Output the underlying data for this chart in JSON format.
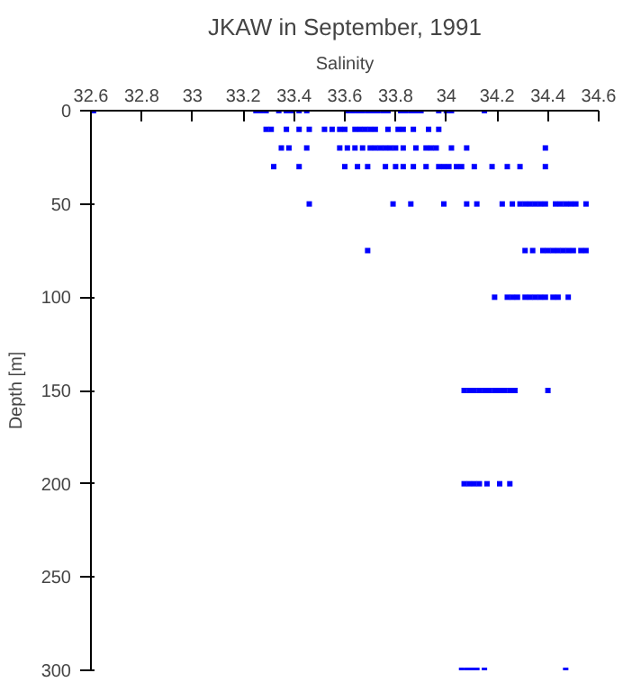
{
  "chart_data": {
    "type": "scatter",
    "title": "JKAW in September, 1991",
    "xlabel": "Salinity",
    "ylabel": "Depth [m]",
    "xlim": [
      32.6,
      34.6
    ],
    "xticks": [
      32.6,
      32.8,
      33,
      33.2,
      33.4,
      33.6,
      33.8,
      34,
      34.2,
      34.4,
      34.6
    ],
    "ylim": [
      300,
      0
    ],
    "yticks": [
      0,
      50,
      100,
      150,
      200,
      250,
      300
    ],
    "grid": false,
    "marker": "square",
    "series": [
      {
        "color": "#0000ff",
        "x": [
          32.61,
          33.25,
          33.27,
          33.29,
          33.34,
          33.37,
          33.39,
          33.42,
          33.45,
          33.61,
          33.63,
          33.65,
          33.67,
          33.69,
          33.71,
          33.73,
          33.75,
          33.77,
          33.82,
          33.84,
          33.86,
          33.88,
          33.9,
          33.97,
          34.0,
          34.02,
          34.15
        ],
        "values": [
          0,
          0,
          0,
          0,
          0,
          0,
          0,
          0,
          0,
          0,
          0,
          0,
          0,
          0,
          0,
          0,
          0,
          0,
          0,
          0,
          0,
          0,
          0,
          0,
          0,
          0,
          0
        ]
      },
      {
        "color": "#0000ff",
        "x": [
          33.29,
          33.31,
          33.37,
          33.42,
          33.46,
          33.52,
          33.55,
          33.58,
          33.6,
          33.64,
          33.66,
          33.68,
          33.7,
          33.72,
          33.77,
          33.81,
          33.83,
          33.87,
          33.93,
          33.97
        ],
        "values": [
          10,
          10,
          10,
          10,
          10,
          10,
          10,
          10,
          10,
          10,
          10,
          10,
          10,
          10,
          10,
          10,
          10,
          10,
          10,
          10
        ]
      },
      {
        "color": "#0000ff",
        "x": [
          33.35,
          33.38,
          33.45,
          33.58,
          33.61,
          33.64,
          33.67,
          33.7,
          33.72,
          33.74,
          33.76,
          33.78,
          33.8,
          33.83,
          33.88,
          33.92,
          33.94,
          33.96,
          34.02,
          34.08,
          34.39
        ],
        "values": [
          20,
          20,
          20,
          20,
          20,
          20,
          20,
          20,
          20,
          20,
          20,
          20,
          20,
          20,
          20,
          20,
          20,
          20,
          20,
          20,
          20
        ]
      },
      {
        "color": "#0000ff",
        "x": [
          33.32,
          33.42,
          33.6,
          33.65,
          33.69,
          33.76,
          33.8,
          33.83,
          33.87,
          33.92,
          33.97,
          33.99,
          34.01,
          34.04,
          34.06,
          34.11,
          34.18,
          34.24,
          34.29,
          34.39
        ],
        "values": [
          30,
          30,
          30,
          30,
          30,
          30,
          30,
          30,
          30,
          30,
          30,
          30,
          30,
          30,
          30,
          30,
          30,
          30,
          30,
          30
        ]
      },
      {
        "color": "#0000ff",
        "x": [
          33.46,
          33.79,
          33.86,
          33.99,
          34.08,
          34.12,
          34.22,
          34.26,
          34.29,
          34.31,
          34.33,
          34.35,
          34.37,
          34.39,
          34.43,
          34.45,
          34.47,
          34.49,
          34.51,
          34.55
        ],
        "values": [
          50,
          50,
          50,
          50,
          50,
          50,
          50,
          50,
          50,
          50,
          50,
          50,
          50,
          50,
          50,
          50,
          50,
          50,
          50,
          50
        ]
      },
      {
        "color": "#0000ff",
        "x": [
          33.69,
          34.31,
          34.34,
          34.38,
          34.4,
          34.42,
          34.44,
          34.46,
          34.48,
          34.5,
          34.53,
          34.55
        ],
        "values": [
          75,
          75,
          75,
          75,
          75,
          75,
          75,
          75,
          75,
          75,
          75,
          75
        ]
      },
      {
        "color": "#0000ff",
        "x": [
          34.19,
          34.24,
          34.26,
          34.28,
          34.31,
          34.33,
          34.35,
          34.37,
          34.39,
          34.42,
          34.44,
          34.48
        ],
        "values": [
          100,
          100,
          100,
          100,
          100,
          100,
          100,
          100,
          100,
          100,
          100,
          100
        ]
      },
      {
        "color": "#0000ff",
        "x": [
          34.07,
          34.09,
          34.11,
          34.13,
          34.15,
          34.17,
          34.19,
          34.21,
          34.23,
          34.25,
          34.27,
          34.4
        ],
        "values": [
          150,
          150,
          150,
          150,
          150,
          150,
          150,
          150,
          150,
          150,
          150,
          150
        ]
      },
      {
        "color": "#0000ff",
        "x": [
          34.07,
          34.09,
          34.11,
          34.13,
          34.16,
          34.21,
          34.25
        ],
        "values": [
          200,
          200,
          200,
          200,
          200,
          200,
          200
        ]
      },
      {
        "color": "#0000ff",
        "x": [
          34.06,
          34.08,
          34.1,
          34.12,
          34.15,
          34.47
        ],
        "values": [
          300,
          300,
          300,
          300,
          300,
          300
        ]
      }
    ]
  }
}
